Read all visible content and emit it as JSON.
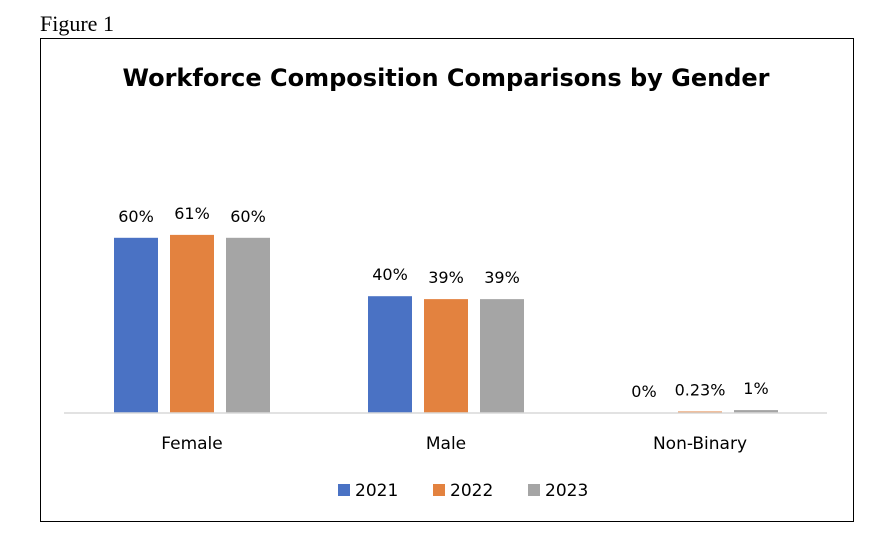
{
  "figure_label": "Figure 1",
  "chart_data": {
    "type": "bar",
    "title": "Workforce Composition Comparisons by Gender",
    "categories": [
      "Female",
      "Male",
      "Non-Binary"
    ],
    "series": [
      {
        "name": "2021",
        "color": "#4A72C4",
        "values": [
          60,
          40,
          0
        ],
        "labels": [
          "60%",
          "40%",
          "0%"
        ]
      },
      {
        "name": "2022",
        "color": "#E3823F",
        "values": [
          61,
          39,
          0.23
        ],
        "labels": [
          "61%",
          "39%",
          "0.23%"
        ]
      },
      {
        "name": "2023",
        "color": "#A5A5A5",
        "values": [
          60,
          39,
          1
        ],
        "labels": [
          "60%",
          "39%",
          "1%"
        ]
      }
    ],
    "ylim": [
      0,
      100
    ],
    "grid": false,
    "legend": "bottom"
  }
}
